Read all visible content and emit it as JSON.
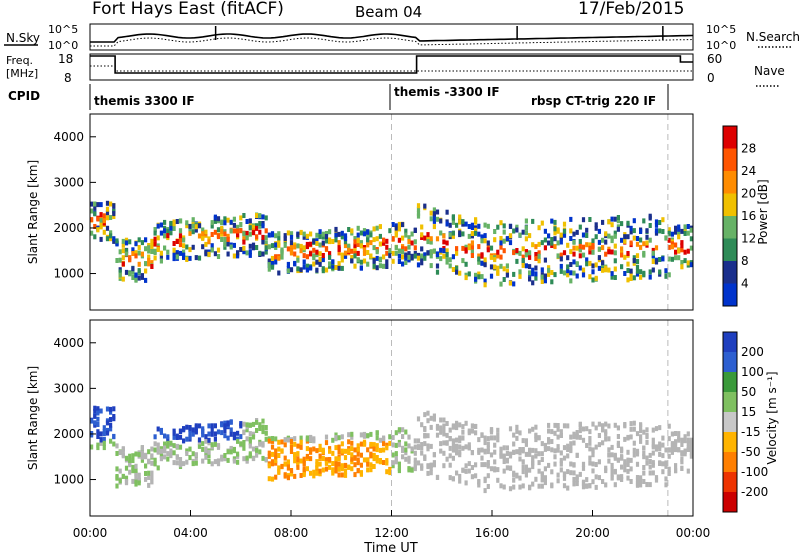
{
  "header": {
    "station": "Fort Hays East (fitACF)",
    "beam": "Beam 04",
    "date": "17/Feb/2015"
  },
  "noise_panel": {
    "left_label": "N.Sky",
    "left_ticks": [
      "10^5",
      "10^0"
    ],
    "right_label": "N.Search",
    "right_ticks": [
      "10^5",
      "10^0"
    ]
  },
  "freq_panel": {
    "left_label_1": "Freq.",
    "left_label_2": "[MHz]",
    "left_ticks": [
      "18",
      "8"
    ],
    "right_label": "Nave",
    "right_ticks": [
      "60",
      "0"
    ]
  },
  "cpid": {
    "label": "CPID",
    "entries": [
      "themis 3300 IF",
      "themis -3300 IF",
      "rbsp CT-trig 220 IF"
    ]
  },
  "x_axis": {
    "title": "Time UT",
    "ticks": [
      "00:00",
      "04:00",
      "08:00",
      "12:00",
      "16:00",
      "20:00",
      "00:00"
    ]
  },
  "colors": {
    "power_scale": [
      "#0033cc",
      "#1a2f8c",
      "#2e8b57",
      "#66b266",
      "#f0c000",
      "#ff8c00",
      "#ff5500",
      "#dd0000"
    ],
    "velocity_scale": [
      "#1f3fbf",
      "#2d5fd0",
      "#3a9a3a",
      "#7fc060",
      "#c8c8c8",
      "#ffb400",
      "#ff7f00",
      "#ee3300",
      "#cc0000"
    ],
    "ground_scatter": "#b4b4b4"
  },
  "chart_data": [
    {
      "type": "heatmap",
      "panel": "power",
      "xlabel": "",
      "ylabel": "Slant Range [km]",
      "x_range_hours": [
        0,
        24
      ],
      "yticks": [
        1000,
        2000,
        3000,
        4000
      ],
      "ylim": [
        200,
        4500
      ],
      "colorbar": {
        "label": "Power [dB]",
        "ticks": [
          "4",
          "8",
          "12",
          "16",
          "20",
          "24",
          "28"
        ],
        "range": [
          0,
          30
        ]
      },
      "dashed_times_hours": [
        12.0,
        23.0
      ]
    },
    {
      "type": "heatmap",
      "panel": "velocity",
      "xlabel": "Time UT",
      "ylabel": "Slant Range [km]",
      "x_range_hours": [
        0,
        24
      ],
      "yticks": [
        1000,
        2000,
        3000,
        4000
      ],
      "ylim": [
        200,
        4500
      ],
      "colorbar": {
        "label": "Velocity [m s⁻¹]",
        "ticks": [
          "200",
          "100",
          "50",
          "15",
          "-15",
          "-50",
          "-100",
          "-200"
        ],
        "range": [
          -250,
          250
        ]
      },
      "dashed_times_hours": [
        12.0,
        23.0
      ]
    }
  ]
}
